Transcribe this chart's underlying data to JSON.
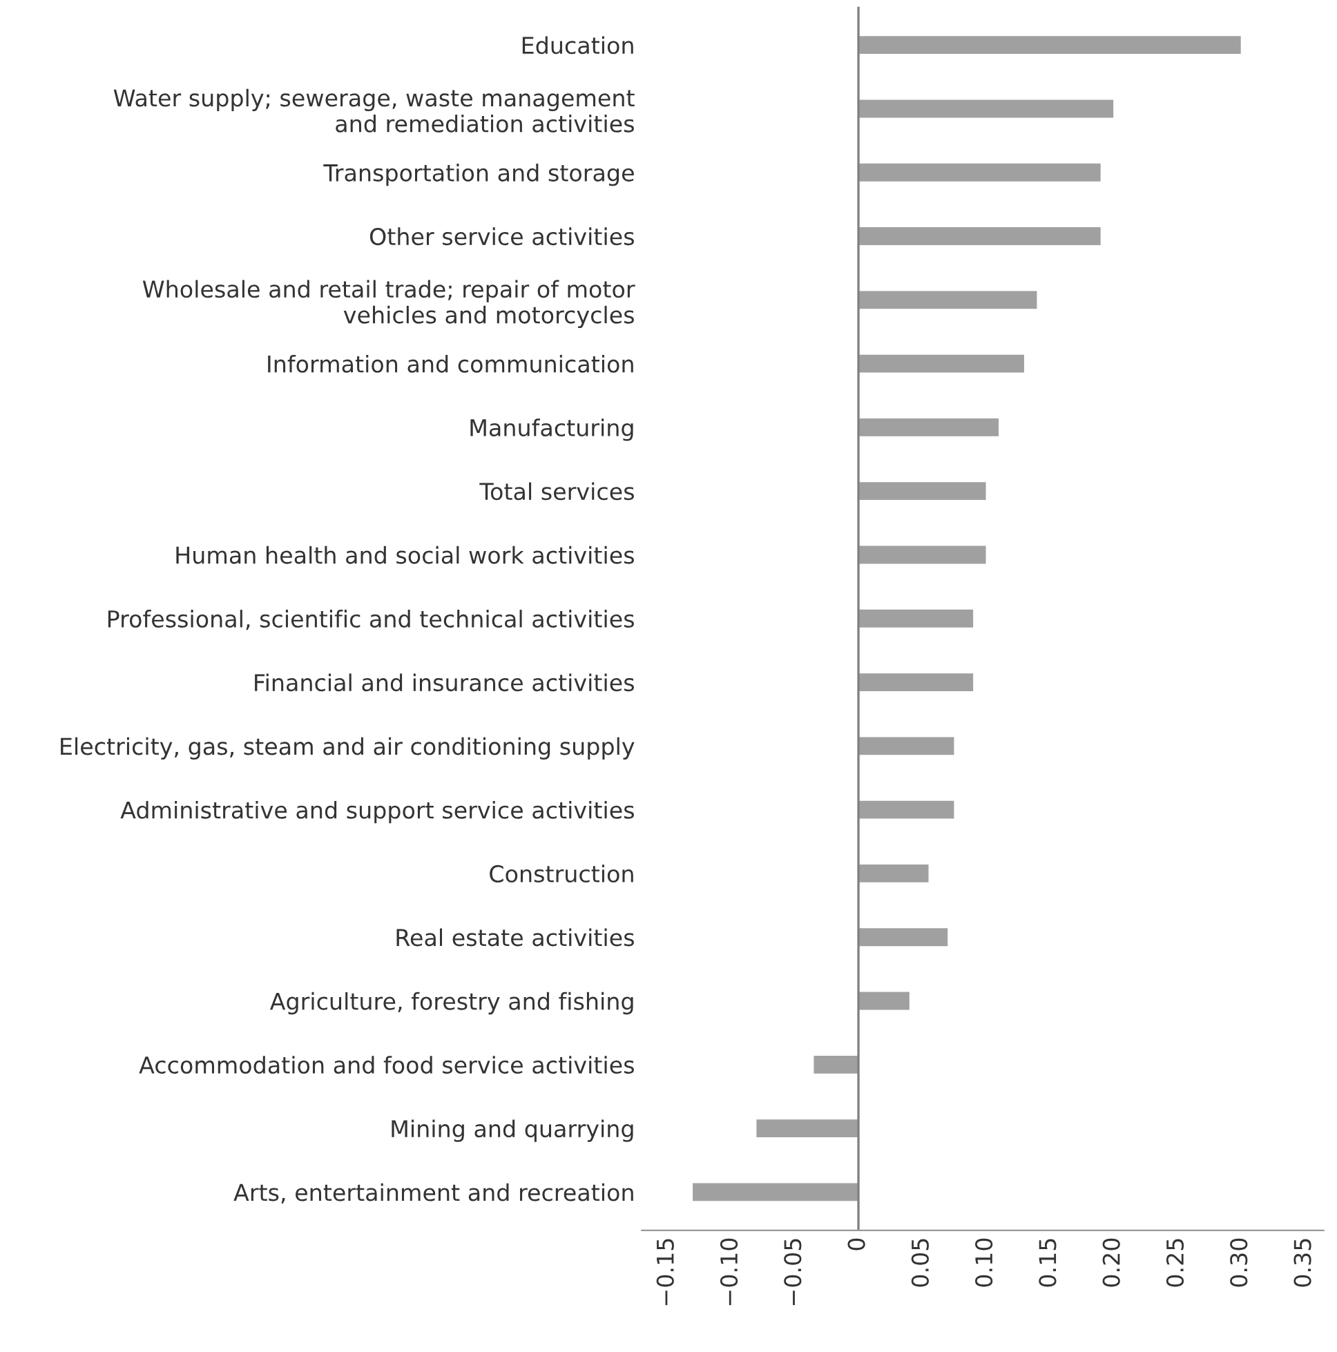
{
  "chart_data": {
    "type": "bar",
    "orientation": "horizontal",
    "categories": [
      "Education",
      "Water supply; sewerage, waste management\nand remediation activities",
      "Transportation and storage",
      "Other service activities",
      "Wholesale and retail trade; repair of motor\nvehicles and motorcycles",
      "Information and communication",
      "Manufacturing",
      "Total services",
      "Human health and social work activities",
      "Professional, scientific and technical activities",
      "Financial and insurance activities",
      "Electricity, gas, steam and air conditioning supply",
      "Administrative and support service activities",
      "Construction",
      "Real estate activities",
      "Agriculture, forestry and fishing",
      "Accommodation and food service activities",
      "Mining and quarrying",
      "Arts, entertainment and recreation"
    ],
    "values": [
      0.3,
      0.2,
      0.19,
      0.19,
      0.14,
      0.13,
      0.11,
      0.1,
      0.1,
      0.09,
      0.09,
      0.075,
      0.075,
      0.055,
      0.07,
      0.04,
      -0.035,
      -0.08,
      -0.13
    ],
    "color": "#a0a0a0",
    "xlim": [
      -0.17,
      0.365
    ],
    "xticks": [
      {
        "value": -0.15,
        "label": "−0.15"
      },
      {
        "value": -0.1,
        "label": "−0.10"
      },
      {
        "value": -0.05,
        "label": "−0.05"
      },
      0,
      {
        "value": 0.05,
        "label": "0.05"
      },
      {
        "value": 0.1,
        "label": "0.10"
      },
      {
        "value": 0.15,
        "label": "0.15"
      },
      {
        "value": 0.2,
        "label": "0.20"
      },
      {
        "value": 0.25,
        "label": "0.25"
      },
      {
        "value": 0.3,
        "label": "0.30"
      },
      {
        "value": 0.35,
        "label": "0.35"
      }
    ],
    "ref_lines": [
      {
        "axis": "x",
        "value": 0,
        "color": "#808080"
      }
    ],
    "grid": false,
    "legend": false
  }
}
